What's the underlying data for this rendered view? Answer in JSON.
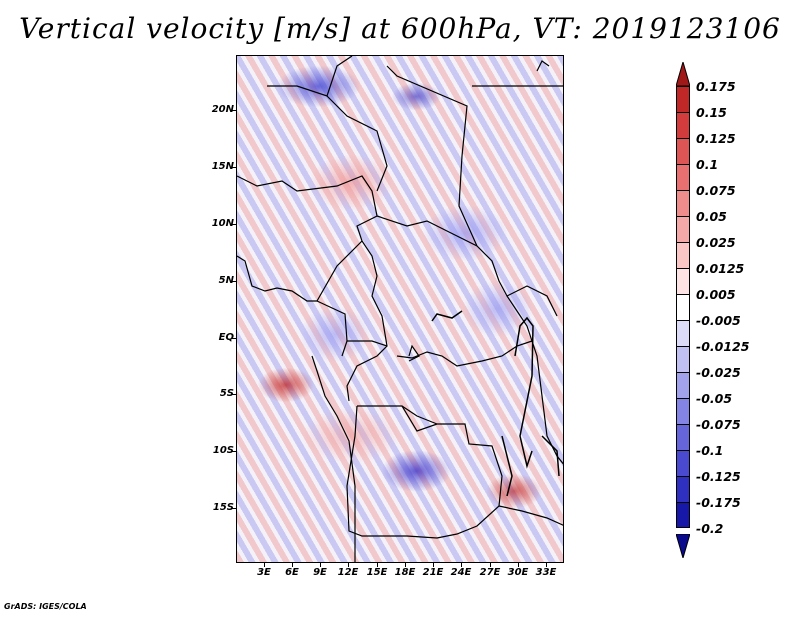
{
  "title": "Vertical velocity [m/s] at 600hPa, VT: 2019123106",
  "footer": "GrADS: IGES/COLA",
  "map": {
    "variable": "Vertical velocity",
    "units": "m/s",
    "level": "600hPa",
    "valid_time": "2019123106",
    "lat_labels": [
      "20N",
      "15N",
      "10N",
      "5N",
      "EQ",
      "5S",
      "10S",
      "15S"
    ],
    "lat_values": [
      20,
      15,
      10,
      5,
      0,
      -5,
      -10,
      -15
    ],
    "lon_labels": [
      "3E",
      "6E",
      "9E",
      "12E",
      "15E",
      "18E",
      "21E",
      "24E",
      "27E",
      "30E",
      "33E"
    ],
    "lon_values": [
      3,
      6,
      9,
      12,
      15,
      18,
      21,
      24,
      27,
      30,
      33
    ],
    "lat_range": [
      -19.5,
      25
    ],
    "lon_range": [
      0.5,
      35
    ]
  },
  "colorbar": {
    "labels": [
      "0.175",
      "0.15",
      "0.125",
      "0.1",
      "0.075",
      "0.05",
      "0.025",
      "0.0125",
      "0.005",
      "-0.005",
      "-0.0125",
      "-0.025",
      "-0.05",
      "-0.075",
      "-0.1",
      "-0.125",
      "-0.175",
      "-0.2"
    ],
    "colors": [
      "#a01818",
      "#c02828",
      "#d23c3c",
      "#de5555",
      "#e87070",
      "#ef8c8c",
      "#f5a8a8",
      "#fac6c6",
      "#fde3e3",
      "#ffffff",
      "#dcdcf8",
      "#c0c0f2",
      "#a2a2ec",
      "#8484e4",
      "#6666da",
      "#4a4ad0",
      "#3030c0",
      "#1818a8",
      "#0a0a8c"
    ]
  }
}
